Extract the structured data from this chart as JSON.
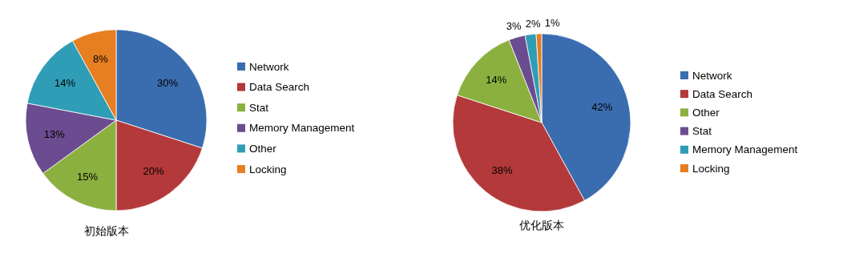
{
  "chart_data": [
    {
      "type": "pie",
      "title": "初始版本",
      "categories": [
        "Network",
        "Data Search",
        "Stat",
        "Memory Management",
        "Other",
        "Locking"
      ],
      "values": [
        30,
        20,
        15,
        13,
        14,
        8
      ],
      "value_labels": [
        "30%",
        "20%",
        "15%",
        "13%",
        "14%",
        "8%"
      ],
      "colors": [
        "#3a6cb0",
        "#b3393a",
        "#8cb03f",
        "#6c4c90",
        "#2f9db6",
        "#e67e22"
      ],
      "legend": "right"
    },
    {
      "type": "pie",
      "title": "优化版本",
      "categories": [
        "Network",
        "Data Search",
        "Other",
        "Stat",
        "Memory Management",
        "Locking"
      ],
      "values": [
        42,
        38,
        14,
        3,
        2,
        1
      ],
      "value_labels": [
        "42%",
        "38%",
        "14%",
        "3%",
        "2%",
        "1%"
      ],
      "colors": [
        "#3a6cb0",
        "#b3393a",
        "#8cb03f",
        "#6c4c90",
        "#2f9db6",
        "#e67e22"
      ],
      "legend": "right"
    }
  ]
}
